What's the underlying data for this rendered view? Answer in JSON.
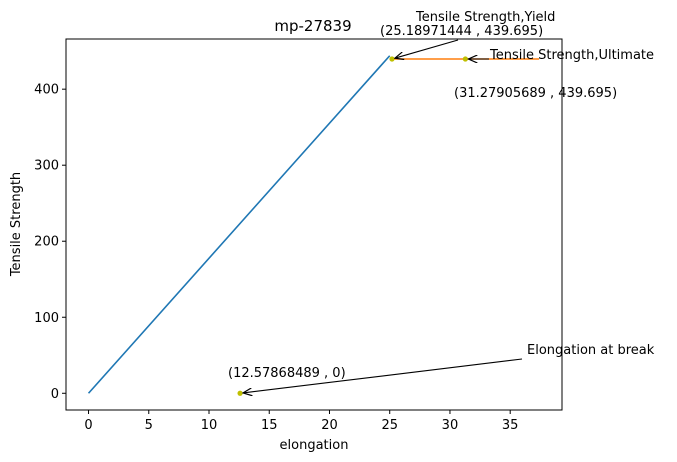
{
  "chart_data": {
    "type": "line",
    "title": "mp-27839",
    "xlabel": "elongation",
    "ylabel": "Tensile Strength",
    "xlim": [
      -1.87,
      39.3
    ],
    "ylim": [
      -22,
      466
    ],
    "xticks": [
      0,
      5,
      10,
      15,
      20,
      25,
      30,
      35
    ],
    "yticks": [
      0,
      100,
      200,
      300,
      400
    ],
    "grid": false,
    "series": [
      {
        "color": "#1f77b4",
        "x": [
          0,
          25
        ],
        "y": [
          0,
          444
        ]
      },
      {
        "color": "#ff7f0e",
        "x": [
          25.19,
          37.4
        ],
        "y": [
          439.695,
          439.695
        ]
      }
    ],
    "points": [
      {
        "x": 25.18971444,
        "y": 439.695,
        "color": "#bfbf00"
      },
      {
        "x": 31.27905689,
        "y": 439.695,
        "color": "#bfbf00"
      },
      {
        "x": 12.57868489,
        "y": 0,
        "color": "#bfbf00"
      }
    ],
    "annotations": [
      {
        "label": "Tensile Strength,Yield",
        "coord_text": "(25.18971444 , 439.695)",
        "target": [
          25.18971444,
          439.695
        ]
      },
      {
        "label": "Tensile Strength,Ultimate",
        "coord_text": "(31.27905689 , 439.695)",
        "target": [
          31.27905689,
          439.695
        ]
      },
      {
        "label": "Elongation at break",
        "coord_text": "(12.57868489 , 0)",
        "target": [
          12.57868489,
          0
        ]
      }
    ]
  }
}
